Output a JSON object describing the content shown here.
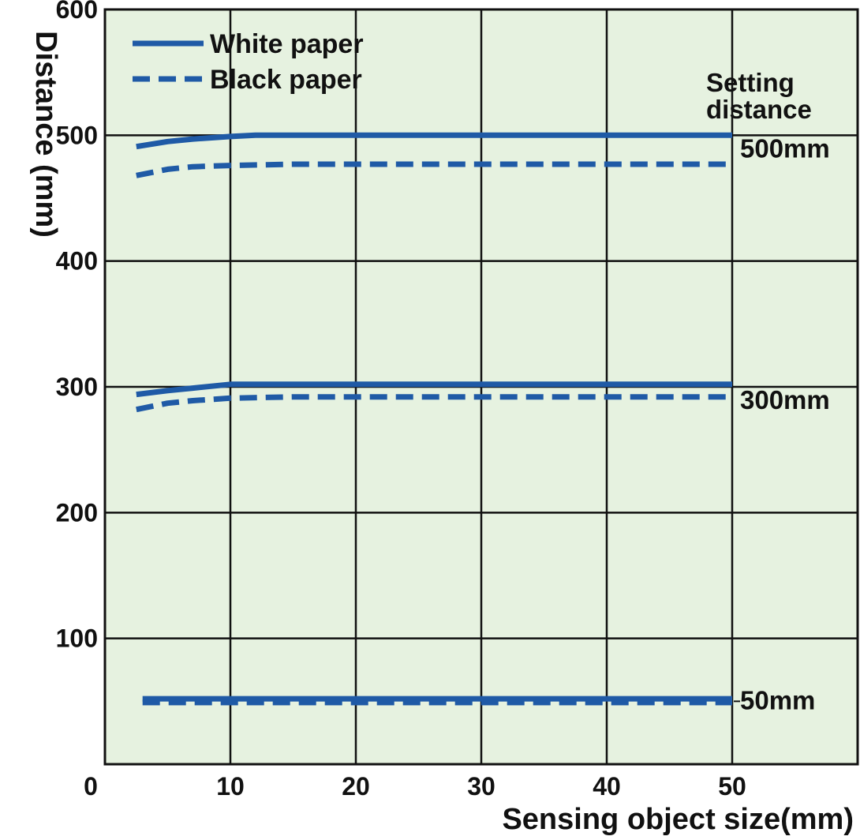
{
  "chart_data": {
    "type": "line",
    "title": "",
    "xlabel": "Sensing object size(mm)",
    "ylabel": "Distance (mm)",
    "xlim": [
      0,
      60
    ],
    "ylim": [
      0,
      600
    ],
    "x_ticks": [
      0,
      10,
      20,
      30,
      40,
      50
    ],
    "y_ticks": [
      100,
      200,
      300,
      400,
      500,
      600
    ],
    "grid": true,
    "background_color": "#e6f2e0",
    "line_color": "#1f5aa6",
    "legend": {
      "position": "top-left",
      "entries": [
        {
          "label": "White paper",
          "style": "solid"
        },
        {
          "label": "Black paper",
          "style": "dashed"
        }
      ]
    },
    "annotations": {
      "header": [
        "Setting",
        "distance"
      ],
      "labels": [
        {
          "text": "500mm",
          "y": 500
        },
        {
          "text": "300mm",
          "y": 300
        },
        {
          "text": "50mm",
          "y": 50
        }
      ]
    },
    "series": [
      {
        "paper": "white",
        "setting": "500mm",
        "style": "solid",
        "x": [
          2.5,
          5,
          7,
          10,
          12,
          20,
          30,
          40,
          50
        ],
        "y": [
          491,
          495,
          497,
          499,
          500,
          500,
          500,
          500,
          500
        ]
      },
      {
        "paper": "black",
        "setting": "500mm",
        "style": "dashed",
        "x": [
          2.5,
          5,
          7,
          10,
          15,
          20,
          30,
          40,
          50
        ],
        "y": [
          468,
          473,
          475,
          476,
          477,
          477,
          477,
          477,
          477
        ]
      },
      {
        "paper": "white",
        "setting": "300mm",
        "style": "solid",
        "x": [
          2.5,
          5,
          7,
          10,
          15,
          20,
          30,
          40,
          50
        ],
        "y": [
          294,
          297,
          299,
          302,
          302,
          302,
          302,
          302,
          302
        ]
      },
      {
        "paper": "black",
        "setting": "300mm",
        "style": "dashed",
        "x": [
          2.5,
          5,
          7,
          10,
          15,
          20,
          30,
          40,
          50
        ],
        "y": [
          282,
          287,
          289,
          291,
          292,
          292,
          292,
          292,
          292
        ]
      },
      {
        "paper": "white",
        "setting": "50mm",
        "style": "solid",
        "x": [
          3,
          10,
          20,
          30,
          40,
          50
        ],
        "y": [
          52,
          52,
          52,
          52,
          52,
          52
        ]
      },
      {
        "paper": "black",
        "setting": "50mm",
        "style": "dashed",
        "x": [
          3,
          10,
          20,
          30,
          40,
          50
        ],
        "y": [
          49,
          49,
          49,
          49,
          49,
          49
        ]
      }
    ]
  }
}
